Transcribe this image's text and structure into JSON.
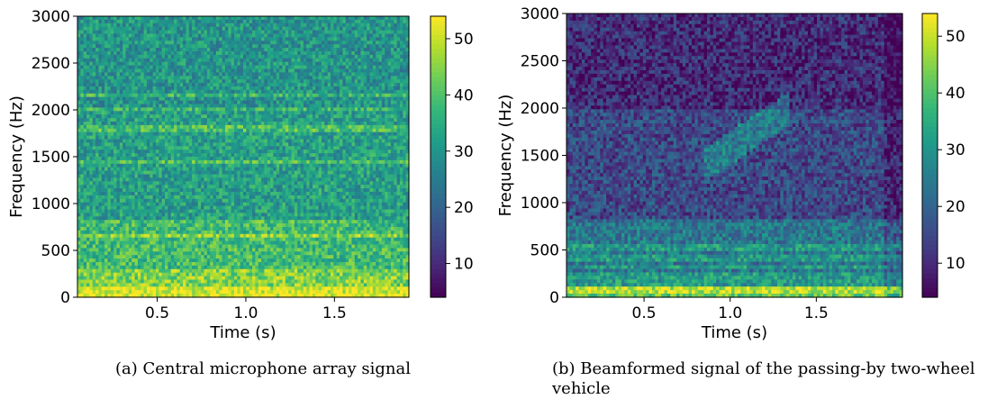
{
  "chart_data": [
    {
      "type": "heatmap",
      "caption": "(a) Central microphone array signal",
      "xlabel": "Time (s)",
      "ylabel": "Frequency (Hz)",
      "xlim": [
        0.05,
        1.92
      ],
      "ylim": [
        0,
        3000
      ],
      "xticks": [
        0.5,
        1.0,
        1.5
      ],
      "xtick_labels": [
        "0.5",
        "1.0",
        "1.5"
      ],
      "yticks": [
        0,
        500,
        1000,
        1500,
        2000,
        2500,
        3000
      ],
      "ytick_labels": [
        "0",
        "500",
        "1000",
        "1500",
        "2000",
        "2500",
        "3000"
      ],
      "colorbar": {
        "min": 4,
        "max": 54,
        "ticks": [
          10,
          20,
          30,
          40,
          50
        ],
        "tick_labels": [
          "10",
          "20",
          "30",
          "40",
          "50"
        ],
        "colormap": "viridis"
      },
      "levels": [
        {
          "freq_max": 100,
          "level": 52
        },
        {
          "freq_max": 300,
          "level": 44
        },
        {
          "freq_max": 800,
          "level": 38
        },
        {
          "freq_max": 2000,
          "level": 32
        },
        {
          "freq_max": 3000,
          "level": 30
        }
      ],
      "harmonic_bands": [
        800,
        650,
        1450,
        1800,
        2000,
        2150
      ]
    },
    {
      "type": "heatmap",
      "caption": "(b) Beamformed signal of the passing-by two-wheel vehicle",
      "xlabel": "Time (s)",
      "ylabel": "Frequency (Hz)",
      "xlim": [
        0.05,
        2.0
      ],
      "ylim": [
        0,
        3000
      ],
      "xticks": [
        0.5,
        1.0,
        1.5
      ],
      "xtick_labels": [
        "0.5",
        "1.0",
        "1.5"
      ],
      "yticks": [
        0,
        500,
        1000,
        1500,
        2000,
        2500,
        3000
      ],
      "ytick_labels": [
        "0",
        "500",
        "1000",
        "1500",
        "2000",
        "2500",
        "3000"
      ],
      "colorbar": {
        "min": 4,
        "max": 54,
        "ticks": [
          10,
          20,
          30,
          40,
          50
        ],
        "tick_labels": [
          "10",
          "20",
          "30",
          "40",
          "50"
        ],
        "colormap": "viridis"
      },
      "levels": [
        {
          "freq_max": 100,
          "level": 42
        },
        {
          "freq_max": 800,
          "level": 24
        },
        {
          "freq_max": 2000,
          "level": 15
        },
        {
          "freq_max": 3000,
          "level": 10
        }
      ],
      "harmonic_bands": [
        80,
        150,
        230,
        320,
        420,
        520,
        800
      ],
      "ridge": {
        "freq_start": 1400,
        "freq_end": 2000,
        "time_start": 0.85,
        "time_end": 1.35
      }
    }
  ]
}
